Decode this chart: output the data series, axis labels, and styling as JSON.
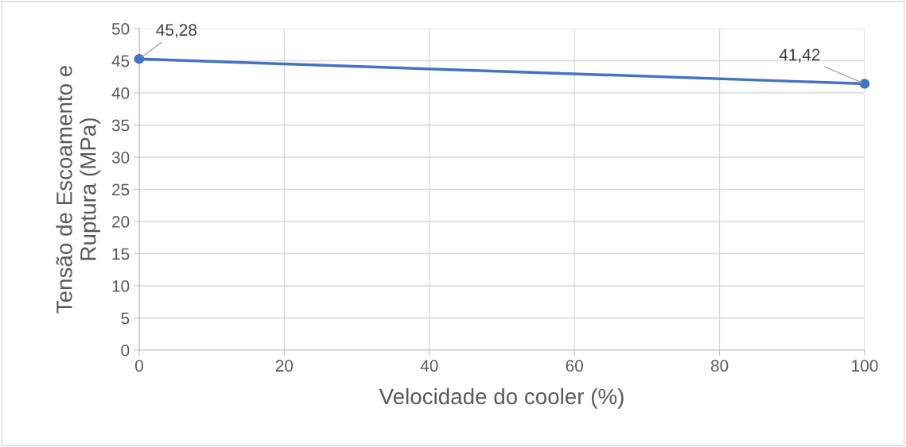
{
  "chart_data": {
    "type": "line",
    "xlabel": "Velocidade do cooler (%)",
    "ylabel": "Tensão de Escoamento e\nRuptura (MPa)",
    "x": [
      0,
      100
    ],
    "series": [
      {
        "color": "#4472c4",
        "values": [
          45.28,
          41.42
        ],
        "value_labels": [
          "45,28",
          "41,42"
        ]
      }
    ],
    "xlim": [
      0,
      100
    ],
    "xticks": [
      0,
      20,
      40,
      60,
      80,
      100
    ],
    "ylim": [
      0,
      50
    ],
    "yticks": [
      0,
      5,
      10,
      15,
      20,
      25,
      30,
      35,
      40,
      45,
      50
    ],
    "grid": true,
    "marker": "circle",
    "line_style": "solid",
    "legend": false
  }
}
